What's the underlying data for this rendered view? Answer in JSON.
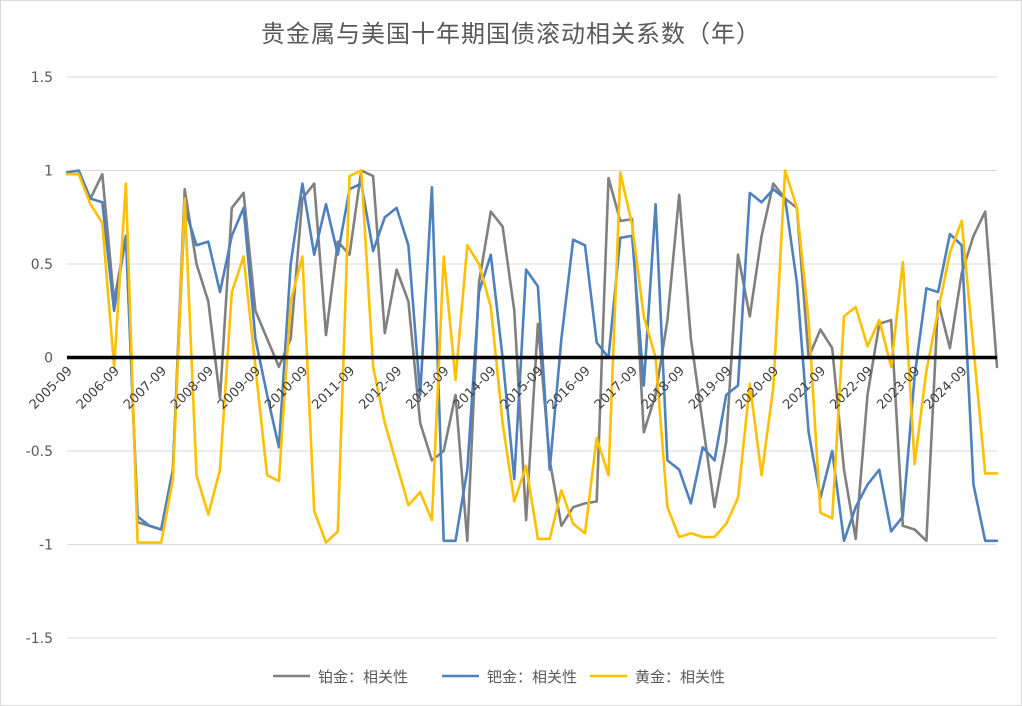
{
  "chart_data": {
    "type": "line",
    "title": "贵金属与美国十年期国债滚动相关系数（年）",
    "ylim": [
      -1.5,
      1.5
    ],
    "yticks": [
      1.5,
      1,
      0.5,
      0,
      -0.5,
      -1,
      -1.5
    ],
    "ytick_labels": [
      "1.5",
      "1",
      "0.5",
      "0",
      "-0.5",
      "-1",
      "-1.5"
    ],
    "x_tick_labels": [
      "2005-09",
      "2006-09",
      "2007-09",
      "2008-09",
      "2009-09",
      "2010-09",
      "2011-09",
      "2012-09",
      "2013-09",
      "2014-09",
      "2015-09",
      "2016-09",
      "2017-09",
      "2018-09",
      "2019-09",
      "2020-09",
      "2021-09",
      "2022-09",
      "2023-09",
      "2024-09"
    ],
    "points_per_tick": 4,
    "grid": "horizontal",
    "legend": "bottom",
    "series": [
      {
        "name": "铂金：相关性",
        "color": "#808080",
        "values": [
          0.98,
          0.98,
          0.85,
          0.98,
          0.3,
          0.65,
          -0.88,
          -0.9,
          -0.92,
          -0.6,
          0.9,
          0.5,
          0.3,
          -0.22,
          0.8,
          0.88,
          0.25,
          0.1,
          -0.05,
          0.1,
          0.85,
          0.93,
          0.12,
          0.62,
          0.55,
          1.0,
          0.97,
          0.13,
          0.47,
          0.3,
          -0.35,
          -0.55,
          -0.5,
          -0.2,
          -0.98,
          0.4,
          0.78,
          0.7,
          0.25,
          -0.87,
          0.18,
          -0.55,
          -0.9,
          -0.8,
          -0.78,
          -0.77,
          0.96,
          0.73,
          0.74,
          -0.4,
          -0.2,
          0.2,
          0.87,
          0.1,
          -0.35,
          -0.8,
          -0.45,
          0.55,
          0.22,
          0.65,
          0.93,
          0.85,
          0.8,
          0.0,
          0.15,
          0.05,
          -0.6,
          -0.97,
          -0.2,
          0.18,
          0.2,
          -0.9,
          -0.92,
          -0.98,
          0.3,
          0.05,
          0.45,
          0.65,
          0.78,
          -0.05
        ]
      },
      {
        "name": "钯金：相关性",
        "color": "#4e81bd",
        "values": [
          0.99,
          1.0,
          0.85,
          0.83,
          0.25,
          0.65,
          -0.85,
          -0.9,
          -0.92,
          -0.6,
          0.8,
          0.6,
          0.62,
          0.35,
          0.65,
          0.8,
          0.1,
          -0.2,
          -0.48,
          0.5,
          0.93,
          0.55,
          0.82,
          0.55,
          0.9,
          0.93,
          0.57,
          0.75,
          0.8,
          0.6,
          -0.2,
          0.91,
          -0.98,
          -0.98,
          -0.6,
          0.35,
          0.55,
          0.0,
          -0.65,
          0.47,
          0.38,
          -0.6,
          0.1,
          0.63,
          0.6,
          0.08,
          0.0,
          0.64,
          0.65,
          -0.15,
          0.82,
          -0.55,
          -0.6,
          -0.78,
          -0.48,
          -0.55,
          -0.2,
          -0.15,
          0.88,
          0.83,
          0.9,
          0.85,
          0.4,
          -0.4,
          -0.75,
          -0.5,
          -0.98,
          -0.8,
          -0.68,
          -0.6,
          -0.93,
          -0.85,
          -0.1,
          0.37,
          0.35,
          0.66,
          0.6,
          -0.68,
          -0.98,
          -0.98
        ]
      },
      {
        "name": "黄金：相关性",
        "color": "#ffc000",
        "values": [
          0.98,
          0.98,
          0.82,
          0.72,
          -0.05,
          0.93,
          -0.99,
          -0.99,
          -0.99,
          -0.65,
          0.85,
          -0.63,
          -0.84,
          -0.6,
          0.35,
          0.54,
          -0.05,
          -0.63,
          -0.66,
          0.3,
          0.54,
          -0.82,
          -0.99,
          -0.93,
          0.97,
          1.0,
          -0.05,
          -0.35,
          -0.57,
          -0.79,
          -0.72,
          -0.87,
          0.54,
          -0.12,
          0.6,
          0.5,
          0.27,
          -0.35,
          -0.77,
          -0.58,
          -0.97,
          -0.97,
          -0.71,
          -0.89,
          -0.94,
          -0.43,
          -0.63,
          0.99,
          0.71,
          0.22,
          0.0,
          -0.8,
          -0.96,
          -0.94,
          -0.96,
          -0.96,
          -0.89,
          -0.75,
          -0.14,
          -0.63,
          -0.16,
          1.0,
          0.8,
          0.2,
          -0.83,
          -0.86,
          0.22,
          0.27,
          0.06,
          0.2,
          -0.05,
          0.51,
          -0.57,
          -0.07,
          0.25,
          0.56,
          0.73,
          0.05,
          -0.62,
          -0.62
        ]
      }
    ]
  }
}
